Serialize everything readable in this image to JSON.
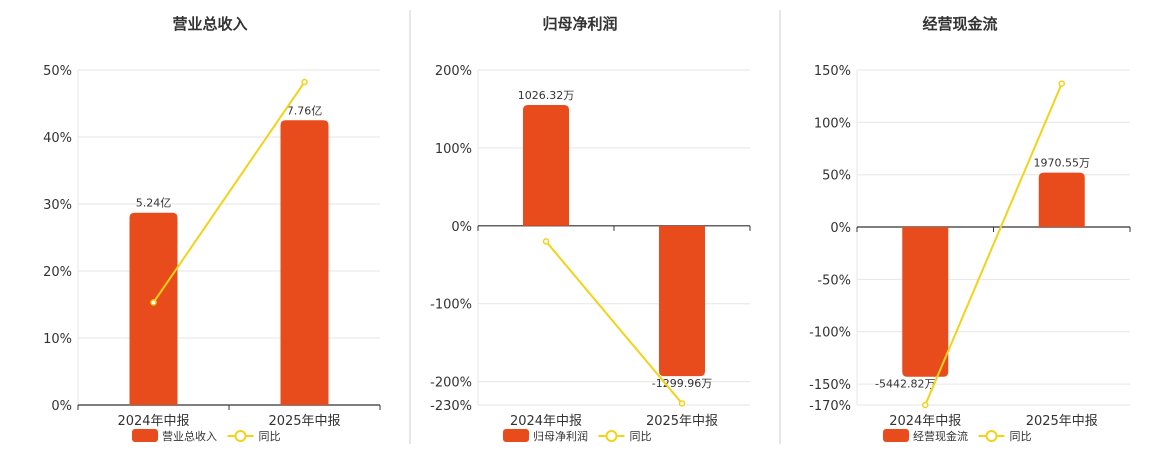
{
  "colors": {
    "bar": "#e84c1c",
    "line": "#f2d21a",
    "grid": "#e6e6e6",
    "axis": "#333333",
    "divider": "#cccccc"
  },
  "chart_data": [
    {
      "type": "bar",
      "title": "营业总收入",
      "categories": [
        "2024年中报",
        "2025年中报"
      ],
      "series": [
        {
          "name": "营业总收入",
          "type": "bar",
          "values": [
            28.7,
            42.5
          ],
          "labels": [
            "5.24亿",
            "7.76亿"
          ]
        },
        {
          "name": "同比",
          "type": "line",
          "values": [
            15.3,
            48.2
          ]
        }
      ],
      "yticks": [
        "50%",
        "40%",
        "30%",
        "20%",
        "10%",
        "0%"
      ],
      "ylim": [
        0,
        50
      ]
    },
    {
      "type": "bar",
      "title": "归母净利润",
      "categories": [
        "2024年中报",
        "2025年中报"
      ],
      "series": [
        {
          "name": "归母净利润",
          "type": "bar",
          "values": [
            155,
            -193
          ],
          "labels": [
            "1026.32万",
            "-1299.96万"
          ]
        },
        {
          "name": "同比",
          "type": "line",
          "values": [
            -20,
            -228
          ]
        }
      ],
      "yticks": [
        "200%",
        "100%",
        "0%",
        "-100%",
        "-200%",
        "-230%"
      ],
      "ylim": [
        -230,
        200
      ]
    },
    {
      "type": "bar",
      "title": "经营现金流",
      "categories": [
        "2024年中报",
        "2025年中报"
      ],
      "series": [
        {
          "name": "经营现金流",
          "type": "bar",
          "values": [
            -143,
            52
          ],
          "labels": [
            "-5442.82万",
            "1970.55万"
          ]
        },
        {
          "name": "同比",
          "type": "line",
          "values": [
            -170,
            137
          ]
        }
      ],
      "yticks": [
        "150%",
        "100%",
        "50%",
        "0%",
        "-50%",
        "-100%",
        "-150%",
        "-170%"
      ],
      "ylim": [
        -170,
        150
      ]
    }
  ]
}
